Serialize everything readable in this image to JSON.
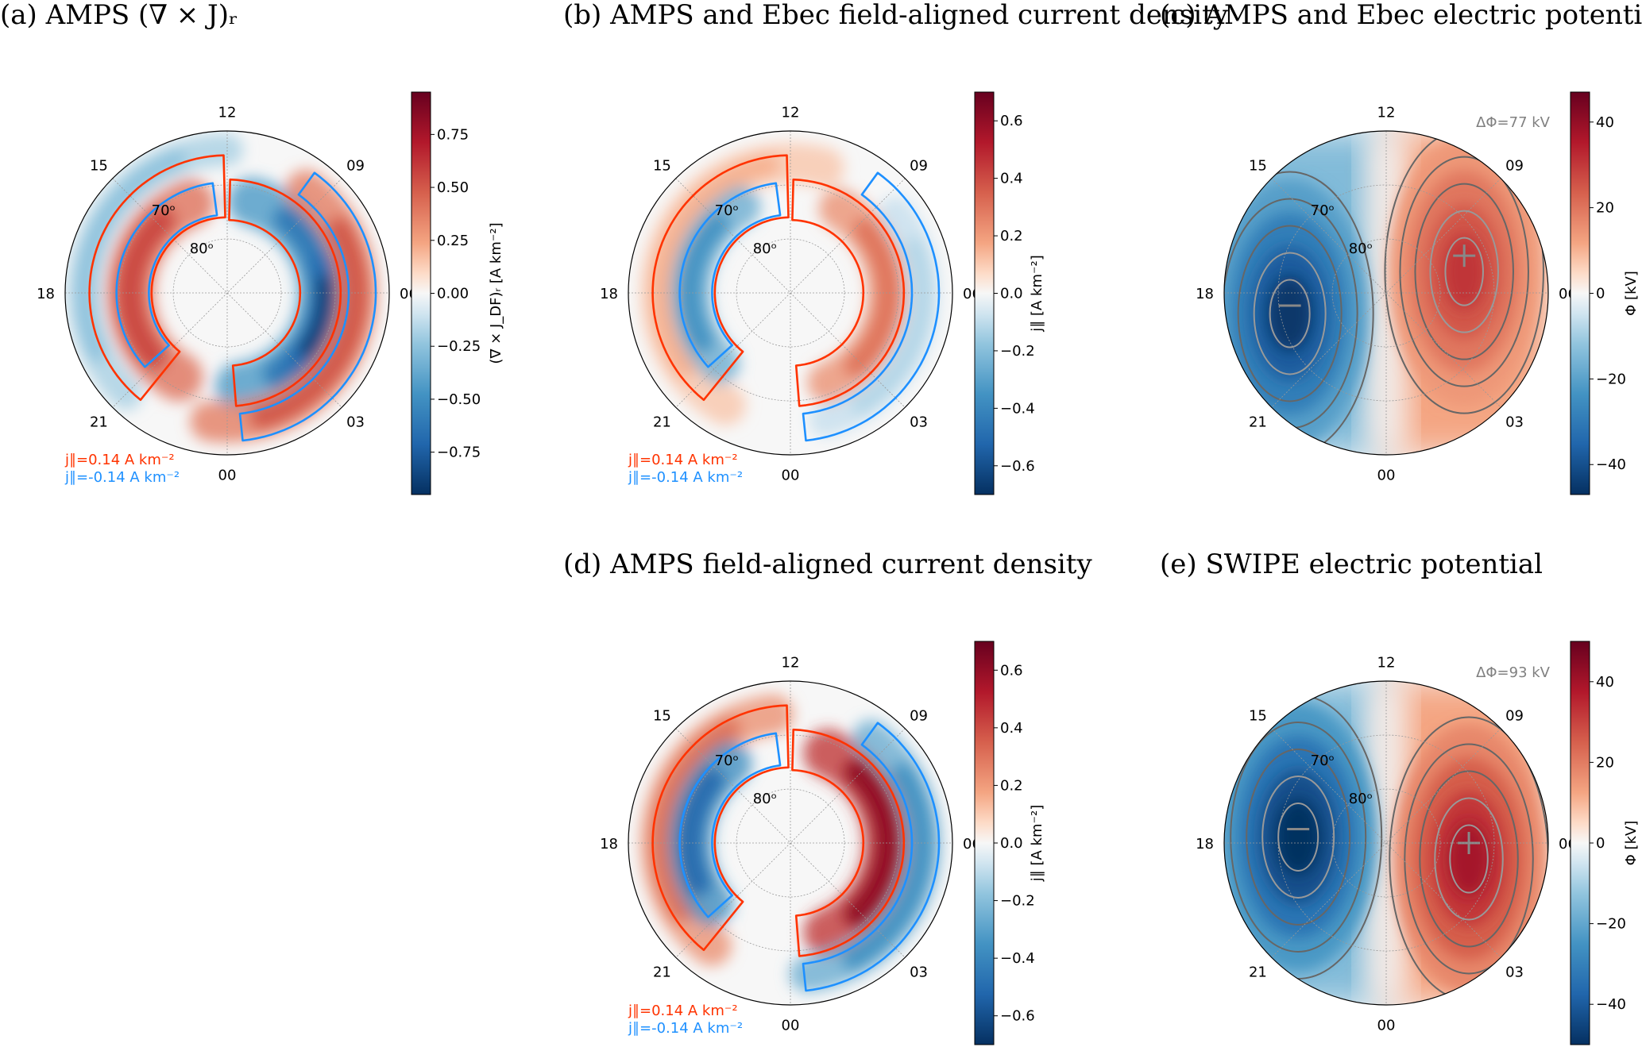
{
  "chart_data": [
    {
      "id": "a",
      "type": "heatmap",
      "projection": "polar-mlt-mlat",
      "title": "(a) AMPS (∇ × J)ᵣ",
      "hour_labels": [
        "12",
        "15",
        "18",
        "21",
        "00",
        "03",
        "06",
        "09"
      ],
      "hour_values": [
        12,
        15,
        18,
        21,
        0,
        3,
        6,
        9
      ],
      "lat_labels": [
        "70ᵒ",
        "80ᵒ"
      ],
      "lat_values": [
        70,
        80
      ],
      "lat_min": 60,
      "colorbar": {
        "label": "(∇ × J_DF)ᵣ [A km⁻²]",
        "range": [
          -0.95,
          0.95
        ],
        "ticks": [
          0.75,
          0.5,
          0.25,
          0,
          -0.25,
          -0.5,
          -0.75
        ],
        "tick_labels": [
          "0.75",
          "0.50",
          "0.25",
          "0.00",
          "−0.25",
          "−0.50",
          "−0.75"
        ],
        "colormap": "RdBu_r"
      },
      "bands": [
        {
          "mlt": [
            12,
            21
          ],
          "lat": 63.5,
          "width": 4,
          "value": -0.25
        },
        {
          "mlt": [
            13.5,
            22
          ],
          "lat": 72,
          "width": 6,
          "value": 0.55
        },
        {
          "mlt": [
            11,
            0.5
          ],
          "lat": 72.5,
          "width": 6,
          "value": -0.6
        },
        {
          "mlt": [
            7,
            3
          ],
          "lat": 72,
          "width": 3.5,
          "value": -0.9
        },
        {
          "mlt": [
            9.5,
            -0.5
          ],
          "lat": 66,
          "width": 5,
          "value": 0.5
        }
      ],
      "contours": [
        {
          "level": 0.14,
          "color": "#ff3300",
          "mlt": [
            12.1,
            21.4
          ],
          "lat": [
            64.5,
            76
          ]
        },
        {
          "level": 0.14,
          "color": "#ff3300",
          "mlt": [
            11.9,
            0.3
          ],
          "lat": [
            69,
            76.5
          ]
        },
        {
          "level": -0.14,
          "color": "#1e90ff",
          "mlt": [
            12.5,
            20.8
          ],
          "lat": [
            69.5,
            75.5
          ]
        },
        {
          "level": -0.14,
          "color": "#1e90ff",
          "mlt": [
            9.6,
            0.4
          ],
          "lat": [
            62.5,
            67.5
          ]
        }
      ],
      "legend": [
        "j∥=0.14 A km⁻²",
        "j∥=-0.14 A km⁻²"
      ],
      "legend_colors": [
        "#ff3300",
        "#1e90ff"
      ]
    },
    {
      "id": "b",
      "type": "heatmap",
      "projection": "polar-mlt-mlat",
      "title": "(b) AMPS and Ebec field-aligned current density",
      "hour_labels": [
        "12",
        "15",
        "18",
        "21",
        "00",
        "03",
        "06",
        "09"
      ],
      "hour_values": [
        12,
        15,
        18,
        21,
        0,
        3,
        6,
        9
      ],
      "lat_labels": [
        "70ᵒ",
        "80ᵒ"
      ],
      "lat_values": [
        70,
        80
      ],
      "lat_min": 60,
      "colorbar": {
        "label": "j∥ [A km⁻²]",
        "range": [
          -0.7,
          0.7
        ],
        "ticks": [
          0.6,
          0.4,
          0.2,
          0,
          -0.2,
          -0.4,
          -0.6
        ],
        "tick_labels": [
          "0.6",
          "0.4",
          "0.2",
          "0.0",
          "−0.2",
          "−0.4",
          "−0.6"
        ],
        "colormap": "RdBu_r"
      },
      "bands": [
        {
          "mlt": [
            11,
            22
          ],
          "lat": 66,
          "width": 5,
          "value": 0.15
        },
        {
          "mlt": [
            14,
            21
          ],
          "lat": 71.5,
          "width": 5,
          "value": -0.35
        },
        {
          "mlt": [
            10,
            1.5
          ],
          "lat": 72,
          "width": 5,
          "value": 0.3
        },
        {
          "mlt": [
            8.5,
            1
          ],
          "lat": 65.5,
          "width": 4,
          "value": -0.12
        }
      ],
      "contours": [
        {
          "level": 0.14,
          "color": "#ff3300",
          "mlt": [
            12.1,
            21.4
          ],
          "lat": [
            64.5,
            76
          ]
        },
        {
          "level": 0.14,
          "color": "#ff3300",
          "mlt": [
            11.9,
            0.3
          ],
          "lat": [
            69,
            76.5
          ]
        },
        {
          "level": -0.14,
          "color": "#1e90ff",
          "mlt": [
            12.5,
            20.8
          ],
          "lat": [
            69.5,
            75.5
          ]
        },
        {
          "level": -0.14,
          "color": "#1e90ff",
          "mlt": [
            9.6,
            0.4
          ],
          "lat": [
            62.5,
            67.5
          ]
        }
      ],
      "legend": [
        "j∥=0.14 A km⁻²",
        "j∥=-0.14 A km⁻²"
      ],
      "legend_colors": [
        "#ff3300",
        "#1e90ff"
      ]
    },
    {
      "id": "c",
      "type": "heatmap",
      "projection": "polar-mlt-mlat",
      "title": "(c) AMPS and Ebec electric potential",
      "hour_labels": [
        "12",
        "15",
        "18",
        "21",
        "00",
        "03",
        "06",
        "09"
      ],
      "hour_values": [
        12,
        15,
        18,
        21,
        0,
        3,
        6,
        9
      ],
      "lat_labels": [
        "70ᵒ",
        "80ᵒ"
      ],
      "lat_values": [
        70,
        80
      ],
      "lat_min": 60,
      "colorbar": {
        "label": "Φ [kV]",
        "range": [
          -47,
          47
        ],
        "ticks": [
          40,
          20,
          0,
          -20,
          -40
        ],
        "tick_labels": [
          "40",
          "20",
          "0",
          "−20",
          "−40"
        ],
        "colormap": "RdBu_r"
      },
      "cells": [
        {
          "mlt": 7.7,
          "lat": 74,
          "value": 31,
          "marker": "+"
        },
        {
          "mlt": 18.5,
          "lat": 72,
          "value": -46,
          "marker": "−"
        }
      ],
      "annotation": "ΔΦ=77 kV"
    },
    {
      "id": "d",
      "type": "heatmap",
      "projection": "polar-mlt-mlat",
      "title": "(d) AMPS field-aligned current density",
      "hour_labels": [
        "12",
        "15",
        "18",
        "21",
        "00",
        "03",
        "06",
        "09"
      ],
      "hour_values": [
        12,
        15,
        18,
        21,
        0,
        3,
        6,
        9
      ],
      "lat_labels": [
        "70ᵒ",
        "80ᵒ"
      ],
      "lat_values": [
        70,
        80
      ],
      "lat_min": 60,
      "colorbar": {
        "label": "j∥ [A km⁻²]",
        "range": [
          -0.7,
          0.7
        ],
        "ticks": [
          0.6,
          0.4,
          0.2,
          0,
          -0.2,
          -0.4,
          -0.6
        ],
        "tick_labels": [
          "0.6",
          "0.4",
          "0.2",
          "0.0",
          "−0.2",
          "−0.4",
          "−0.6"
        ],
        "colormap": "RdBu_r"
      },
      "bands": [
        {
          "mlt": [
            12.5,
            21.5
          ],
          "lat": 66,
          "width": 5,
          "value": 0.3
        },
        {
          "mlt": [
            14.5,
            20.5
          ],
          "lat": 71.5,
          "width": 5.5,
          "value": -0.5
        },
        {
          "mlt": [
            10.5,
            1.5
          ],
          "lat": 72,
          "width": 6,
          "value": 0.6
        },
        {
          "mlt": [
            9.5,
            0.5
          ],
          "lat": 65.5,
          "width": 4.5,
          "value": -0.35
        }
      ],
      "contours": [
        {
          "level": 0.14,
          "color": "#ff3300",
          "mlt": [
            12.1,
            21.4
          ],
          "lat": [
            64.5,
            76
          ]
        },
        {
          "level": 0.14,
          "color": "#ff3300",
          "mlt": [
            11.9,
            0.3
          ],
          "lat": [
            69,
            76.5
          ]
        },
        {
          "level": -0.14,
          "color": "#1e90ff",
          "mlt": [
            12.5,
            20.8
          ],
          "lat": [
            69.5,
            75.5
          ]
        },
        {
          "level": -0.14,
          "color": "#1e90ff",
          "mlt": [
            9.6,
            0.4
          ],
          "lat": [
            62.5,
            67.5
          ]
        }
      ],
      "legend": [
        "j∥=0.14 A km⁻²",
        "j∥=-0.14 A km⁻²"
      ],
      "legend_colors": [
        "#ff3300",
        "#1e90ff"
      ]
    },
    {
      "id": "e",
      "type": "heatmap",
      "projection": "polar-mlt-mlat",
      "title": "(e) SWIPE electric potential",
      "hour_labels": [
        "12",
        "15",
        "18",
        "21",
        "00",
        "03",
        "06",
        "09"
      ],
      "hour_values": [
        12,
        15,
        18,
        21,
        0,
        3,
        6,
        9
      ],
      "lat_labels": [
        "70ᵒ",
        "80ᵒ"
      ],
      "lat_values": [
        70,
        80
      ],
      "lat_min": 60,
      "colorbar": {
        "label": "Φ [kV]",
        "range": [
          -50,
          50
        ],
        "ticks": [
          40,
          20,
          0,
          -20,
          -40
        ],
        "tick_labels": [
          "40",
          "20",
          "0",
          "−20",
          "−40"
        ],
        "colormap": "RdBu_r"
      },
      "cells": [
        {
          "mlt": 6.0,
          "lat": 74.7,
          "value": 40,
          "marker": "+"
        },
        {
          "mlt": 17.4,
          "lat": 73.5,
          "value": -53,
          "marker": "−"
        }
      ],
      "annotation": "ΔΦ=93 kV"
    }
  ]
}
